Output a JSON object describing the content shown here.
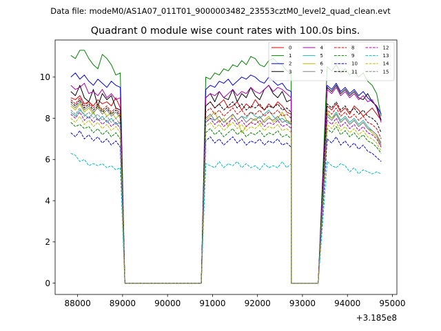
{
  "chart_data": {
    "type": "line",
    "suptitle": "Data file: modeM0/AS1A07_011T01_9000003482_23553cztM0_level2_quad_clean.evt",
    "title": "Quadrant 0 module wise count rates with 100.0s bins.",
    "xlabel": "",
    "ylabel": "",
    "x_offset_label": "+3.185e8",
    "xlim": [
      87500,
      95100
    ],
    "ylim": [
      -0.55,
      11.8
    ],
    "x_ticks": [
      88000,
      89000,
      90000,
      91000,
      92000,
      93000,
      94000,
      95000
    ],
    "y_ticks": [
      0,
      2,
      4,
      6,
      8,
      10
    ],
    "legend_position": "top-right",
    "legend_columns": 4,
    "segments": [
      {
        "x_start": 87850,
        "step": 100,
        "count": 12
      },
      {
        "x_start": 90850,
        "step": 100,
        "count": 20
      },
      {
        "x_start": 93550,
        "step": 100,
        "count": 13
      }
    ],
    "gap_anchors": [
      {
        "after_segment": 0,
        "x": [
          89050,
          90750
        ]
      },
      {
        "after_segment": 1,
        "x": [
          92750,
          93350
        ]
      }
    ],
    "series": [
      {
        "name": "0",
        "color": "#dd0000",
        "dash": "solid",
        "segments": [
          [
            9.0,
            8.9,
            9.1,
            8.7,
            8.8,
            8.6,
            8.9,
            8.7,
            8.8,
            8.6,
            9.0,
            8.5
          ],
          [
            8.6,
            8.8,
            8.5,
            8.7,
            8.9,
            8.5,
            8.6,
            8.8,
            8.4,
            8.7,
            8.5,
            8.9,
            8.6,
            8.4,
            8.7,
            8.5,
            8.8,
            8.6,
            8.3,
            8.2
          ],
          [
            8.6,
            8.4,
            8.7,
            8.3,
            8.5,
            8.2,
            8.6,
            8.4,
            8.1,
            8.3,
            8.5,
            8.2,
            7.9
          ]
        ]
      },
      {
        "name": "1",
        "color": "#008000",
        "dash": "solid",
        "segments": [
          [
            11.05,
            10.9,
            11.3,
            11.3,
            10.9,
            10.6,
            10.4,
            11.1,
            10.9,
            10.6,
            10.1,
            10.2
          ],
          [
            10.0,
            9.9,
            10.2,
            10.1,
            10.4,
            10.3,
            10.6,
            10.5,
            10.8,
            10.6,
            11.0,
            10.9,
            10.6,
            10.5,
            10.8,
            10.9,
            10.7,
            10.6,
            10.3,
            10.2
          ],
          [
            10.5,
            10.3,
            10.6,
            10.2,
            10.4,
            10.1,
            10.3,
            10.0,
            10.2,
            9.8,
            9.6,
            9.2,
            8.1
          ]
        ]
      },
      {
        "name": "2",
        "color": "#0000dd",
        "dash": "solid",
        "segments": [
          [
            10.0,
            10.2,
            9.9,
            10.1,
            9.8,
            9.6,
            9.9,
            9.7,
            9.5,
            9.8,
            9.6,
            9.5
          ],
          [
            9.4,
            9.6,
            9.5,
            9.8,
            9.7,
            9.9,
            9.6,
            9.8,
            10.0,
            9.9,
            10.1,
            10.0,
            9.8,
            9.7,
            10.0,
            9.8,
            9.6,
            9.7,
            9.4,
            9.3
          ],
          [
            9.6,
            9.4,
            9.7,
            9.3,
            9.5,
            9.2,
            9.4,
            9.1,
            9.3,
            9.0,
            8.8,
            8.6,
            8.2
          ]
        ]
      },
      {
        "name": "3",
        "color": "#000000",
        "dash": "solid",
        "segments": [
          [
            9.3,
            9.1,
            9.6,
            9.0,
            8.8,
            9.4,
            8.6,
            9.2,
            8.9,
            9.1,
            8.5,
            8.4
          ],
          [
            9.0,
            9.2,
            8.8,
            9.3,
            9.0,
            8.9,
            9.4,
            8.8,
            9.2,
            9.0,
            9.5,
            9.1,
            8.9,
            9.4,
            9.6,
            9.2,
            9.0,
            9.3,
            8.8,
            8.9
          ],
          [
            9.5,
            9.3,
            9.6,
            9.2,
            9.4,
            9.1,
            9.3,
            9.0,
            8.9,
            9.2,
            8.8,
            8.6,
            7.9
          ]
        ]
      },
      {
        "name": "4",
        "color": "#aa00aa",
        "dash": "solid",
        "segments": [
          [
            9.6,
            9.4,
            9.5,
            9.7,
            9.2,
            9.3,
            9.1,
            9.4,
            9.0,
            9.2,
            8.9,
            9.0
          ],
          [
            9.0,
            9.2,
            9.1,
            9.3,
            9.0,
            9.2,
            9.4,
            9.1,
            9.3,
            9.2,
            9.5,
            9.3,
            9.2,
            9.4,
            9.6,
            9.3,
            9.5,
            9.4,
            9.2,
            9.0
          ],
          [
            9.4,
            9.2,
            9.5,
            9.1,
            9.3,
            9.0,
            9.2,
            8.9,
            9.1,
            8.8,
            8.9,
            8.5,
            7.8
          ]
        ]
      },
      {
        "name": "5",
        "color": "#20b2aa",
        "dash": "solid",
        "segments": [
          [
            8.3,
            8.1,
            8.4,
            8.2,
            8.0,
            8.3,
            7.9,
            8.1,
            7.8,
            8.0,
            7.7,
            7.8
          ],
          [
            7.8,
            8.0,
            7.9,
            8.1,
            7.8,
            8.0,
            8.2,
            7.9,
            8.1,
            8.0,
            8.3,
            8.1,
            8.0,
            8.2,
            8.4,
            8.1,
            7.9,
            8.0,
            7.8,
            7.7
          ],
          [
            8.2,
            8.0,
            8.3,
            7.9,
            8.1,
            7.8,
            8.0,
            7.7,
            7.9,
            7.6,
            7.4,
            7.2,
            6.8
          ]
        ]
      },
      {
        "name": "6",
        "color": "#b8b800",
        "dash": "solid",
        "segments": [
          [
            8.6,
            8.4,
            8.7,
            8.3,
            8.5,
            8.2,
            8.6,
            8.4,
            8.1,
            8.3,
            8.0,
            8.2
          ],
          [
            7.9,
            8.1,
            8.3,
            7.8,
            8.0,
            7.6,
            8.2,
            7.9,
            7.3,
            7.6,
            7.8,
            8.0,
            7.7,
            7.9,
            8.1,
            7.8,
            8.0,
            8.3,
            7.9,
            7.8
          ],
          [
            8.3,
            8.0,
            8.2,
            7.8,
            8.0,
            7.7,
            7.9,
            7.6,
            7.8,
            7.5,
            7.3,
            7.1,
            6.6
          ]
        ]
      },
      {
        "name": "7",
        "color": "#808080",
        "dash": "solid",
        "segments": [
          [
            8.7,
            8.5,
            8.8,
            8.4,
            8.6,
            8.3,
            8.5,
            8.2,
            8.4,
            8.1,
            8.3,
            8.0
          ],
          [
            8.0,
            8.2,
            7.9,
            8.1,
            7.8,
            8.0,
            8.2,
            7.9,
            8.1,
            7.8,
            8.0,
            7.9,
            8.1,
            7.8,
            8.0,
            7.9,
            8.1,
            7.8,
            7.9,
            7.7
          ],
          [
            8.1,
            7.9,
            8.2,
            7.8,
            8.0,
            7.7,
            7.9,
            7.6,
            7.8,
            7.5,
            7.4,
            7.2,
            6.7
          ]
        ]
      },
      {
        "name": "8",
        "color": "#dd0000",
        "dash": "dashed",
        "segments": [
          [
            8.9,
            8.7,
            9.0,
            8.6,
            8.8,
            8.5,
            8.7,
            8.4,
            8.6,
            8.3,
            8.5,
            8.2
          ],
          [
            8.3,
            8.5,
            8.2,
            8.4,
            8.1,
            8.3,
            8.5,
            8.2,
            8.4,
            8.1,
            8.3,
            8.2,
            8.4,
            8.1,
            8.3,
            8.2,
            8.4,
            8.1,
            8.2,
            8.0
          ],
          [
            8.4,
            8.2,
            8.5,
            8.1,
            8.3,
            8.0,
            8.2,
            7.9,
            8.1,
            7.8,
            7.7,
            7.5,
            7.0
          ]
        ]
      },
      {
        "name": "9",
        "color": "#008000",
        "dash": "dashed",
        "segments": [
          [
            7.8,
            7.6,
            7.7,
            7.5,
            7.6,
            7.3,
            7.5,
            7.2,
            7.4,
            7.1,
            7.3,
            7.0
          ],
          [
            7.3,
            7.5,
            7.2,
            7.4,
            7.1,
            7.3,
            7.5,
            7.2,
            7.4,
            7.1,
            7.3,
            7.2,
            7.4,
            7.1,
            7.3,
            7.2,
            7.4,
            7.1,
            7.2,
            7.0
          ],
          [
            7.5,
            7.3,
            7.6,
            7.2,
            7.4,
            7.1,
            7.3,
            7.0,
            7.2,
            6.9,
            6.8,
            6.6,
            6.3
          ]
        ]
      },
      {
        "name": "10",
        "color": "#0000dd",
        "dash": "dashed",
        "segments": [
          [
            7.3,
            7.1,
            7.4,
            7.0,
            7.2,
            6.9,
            7.1,
            6.8,
            7.0,
            6.7,
            6.9,
            6.6
          ],
          [
            6.9,
            7.1,
            6.8,
            7.0,
            6.7,
            6.9,
            7.1,
            6.8,
            7.0,
            6.7,
            6.9,
            6.8,
            7.0,
            6.7,
            6.9,
            6.8,
            7.0,
            6.7,
            6.8,
            6.6
          ],
          [
            7.0,
            6.8,
            7.1,
            6.7,
            6.9,
            6.6,
            6.8,
            6.5,
            6.7,
            6.4,
            6.3,
            6.1,
            5.9
          ]
        ]
      },
      {
        "name": "11",
        "color": "#000000",
        "dash": "dashed",
        "segments": [
          [
            8.8,
            8.6,
            8.9,
            8.5,
            8.7,
            8.4,
            8.6,
            8.3,
            8.5,
            8.2,
            8.4,
            8.1
          ],
          [
            8.6,
            8.8,
            8.5,
            8.7,
            8.4,
            8.6,
            8.8,
            8.5,
            8.7,
            8.4,
            8.6,
            8.5,
            8.7,
            8.4,
            8.6,
            8.5,
            8.7,
            8.4,
            8.5,
            8.3
          ],
          [
            8.7,
            8.5,
            8.8,
            8.4,
            8.6,
            8.3,
            8.5,
            8.2,
            8.4,
            8.1,
            8.0,
            7.8,
            7.3
          ]
        ]
      },
      {
        "name": "12",
        "color": "#aa00aa",
        "dash": "dashed",
        "segments": [
          [
            8.2,
            8.0,
            8.3,
            7.9,
            8.1,
            7.8,
            8.0,
            7.7,
            7.9,
            7.6,
            7.8,
            7.5
          ],
          [
            7.8,
            8.0,
            7.7,
            7.9,
            7.6,
            7.8,
            8.0,
            7.7,
            7.9,
            7.6,
            7.8,
            7.7,
            7.9,
            7.6,
            7.8,
            7.7,
            7.9,
            7.6,
            7.7,
            7.5
          ],
          [
            7.9,
            7.7,
            8.0,
            7.6,
            7.8,
            7.5,
            7.7,
            7.4,
            7.6,
            7.3,
            7.2,
            7.0,
            6.6
          ]
        ]
      },
      {
        "name": "13",
        "color": "#00bcbc",
        "dash": "dashed",
        "segments": [
          [
            6.3,
            6.2,
            5.9,
            6.0,
            5.7,
            5.8,
            5.7,
            5.8,
            5.6,
            5.7,
            5.5,
            5.6
          ],
          [
            5.8,
            5.7,
            5.6,
            5.9,
            5.6,
            5.8,
            5.7,
            5.9,
            5.6,
            5.8,
            5.6,
            5.7,
            5.5,
            5.8,
            5.6,
            5.7,
            5.6,
            5.9,
            5.6,
            5.8
          ],
          [
            5.9,
            5.7,
            5.6,
            5.8,
            5.7,
            5.4,
            5.6,
            5.3,
            5.5,
            5.4,
            5.3,
            5.4,
            5.3
          ]
        ]
      },
      {
        "name": "14",
        "color": "#b8b800",
        "dash": "dashed",
        "segments": [
          [
            8.0,
            7.8,
            8.1,
            7.7,
            7.9,
            7.6,
            7.8,
            7.5,
            7.7,
            7.4,
            7.6,
            7.3
          ],
          [
            7.6,
            7.8,
            7.5,
            7.7,
            7.4,
            7.6,
            7.8,
            7.5,
            7.7,
            7.4,
            7.6,
            7.5,
            7.7,
            7.4,
            7.6,
            7.5,
            7.7,
            7.4,
            7.5,
            7.3
          ],
          [
            7.7,
            7.5,
            7.8,
            7.4,
            7.6,
            7.3,
            7.5,
            7.2,
            7.4,
            7.1,
            7.0,
            6.8,
            6.4
          ]
        ]
      },
      {
        "name": "15",
        "color": "#808080",
        "dash": "dashed",
        "segments": [
          [
            8.4,
            8.2,
            8.5,
            8.1,
            8.3,
            8.0,
            8.2,
            7.9,
            8.1,
            7.8,
            8.0,
            7.7
          ],
          [
            8.0,
            8.2,
            7.9,
            8.1,
            7.8,
            8.0,
            8.2,
            7.9,
            8.1,
            7.8,
            8.0,
            7.9,
            8.1,
            7.8,
            8.0,
            7.9,
            8.1,
            7.8,
            7.9,
            7.7
          ],
          [
            8.1,
            7.9,
            8.2,
            7.8,
            8.0,
            7.7,
            7.9,
            7.6,
            7.8,
            7.5,
            7.4,
            7.2,
            6.8
          ]
        ]
      }
    ]
  }
}
